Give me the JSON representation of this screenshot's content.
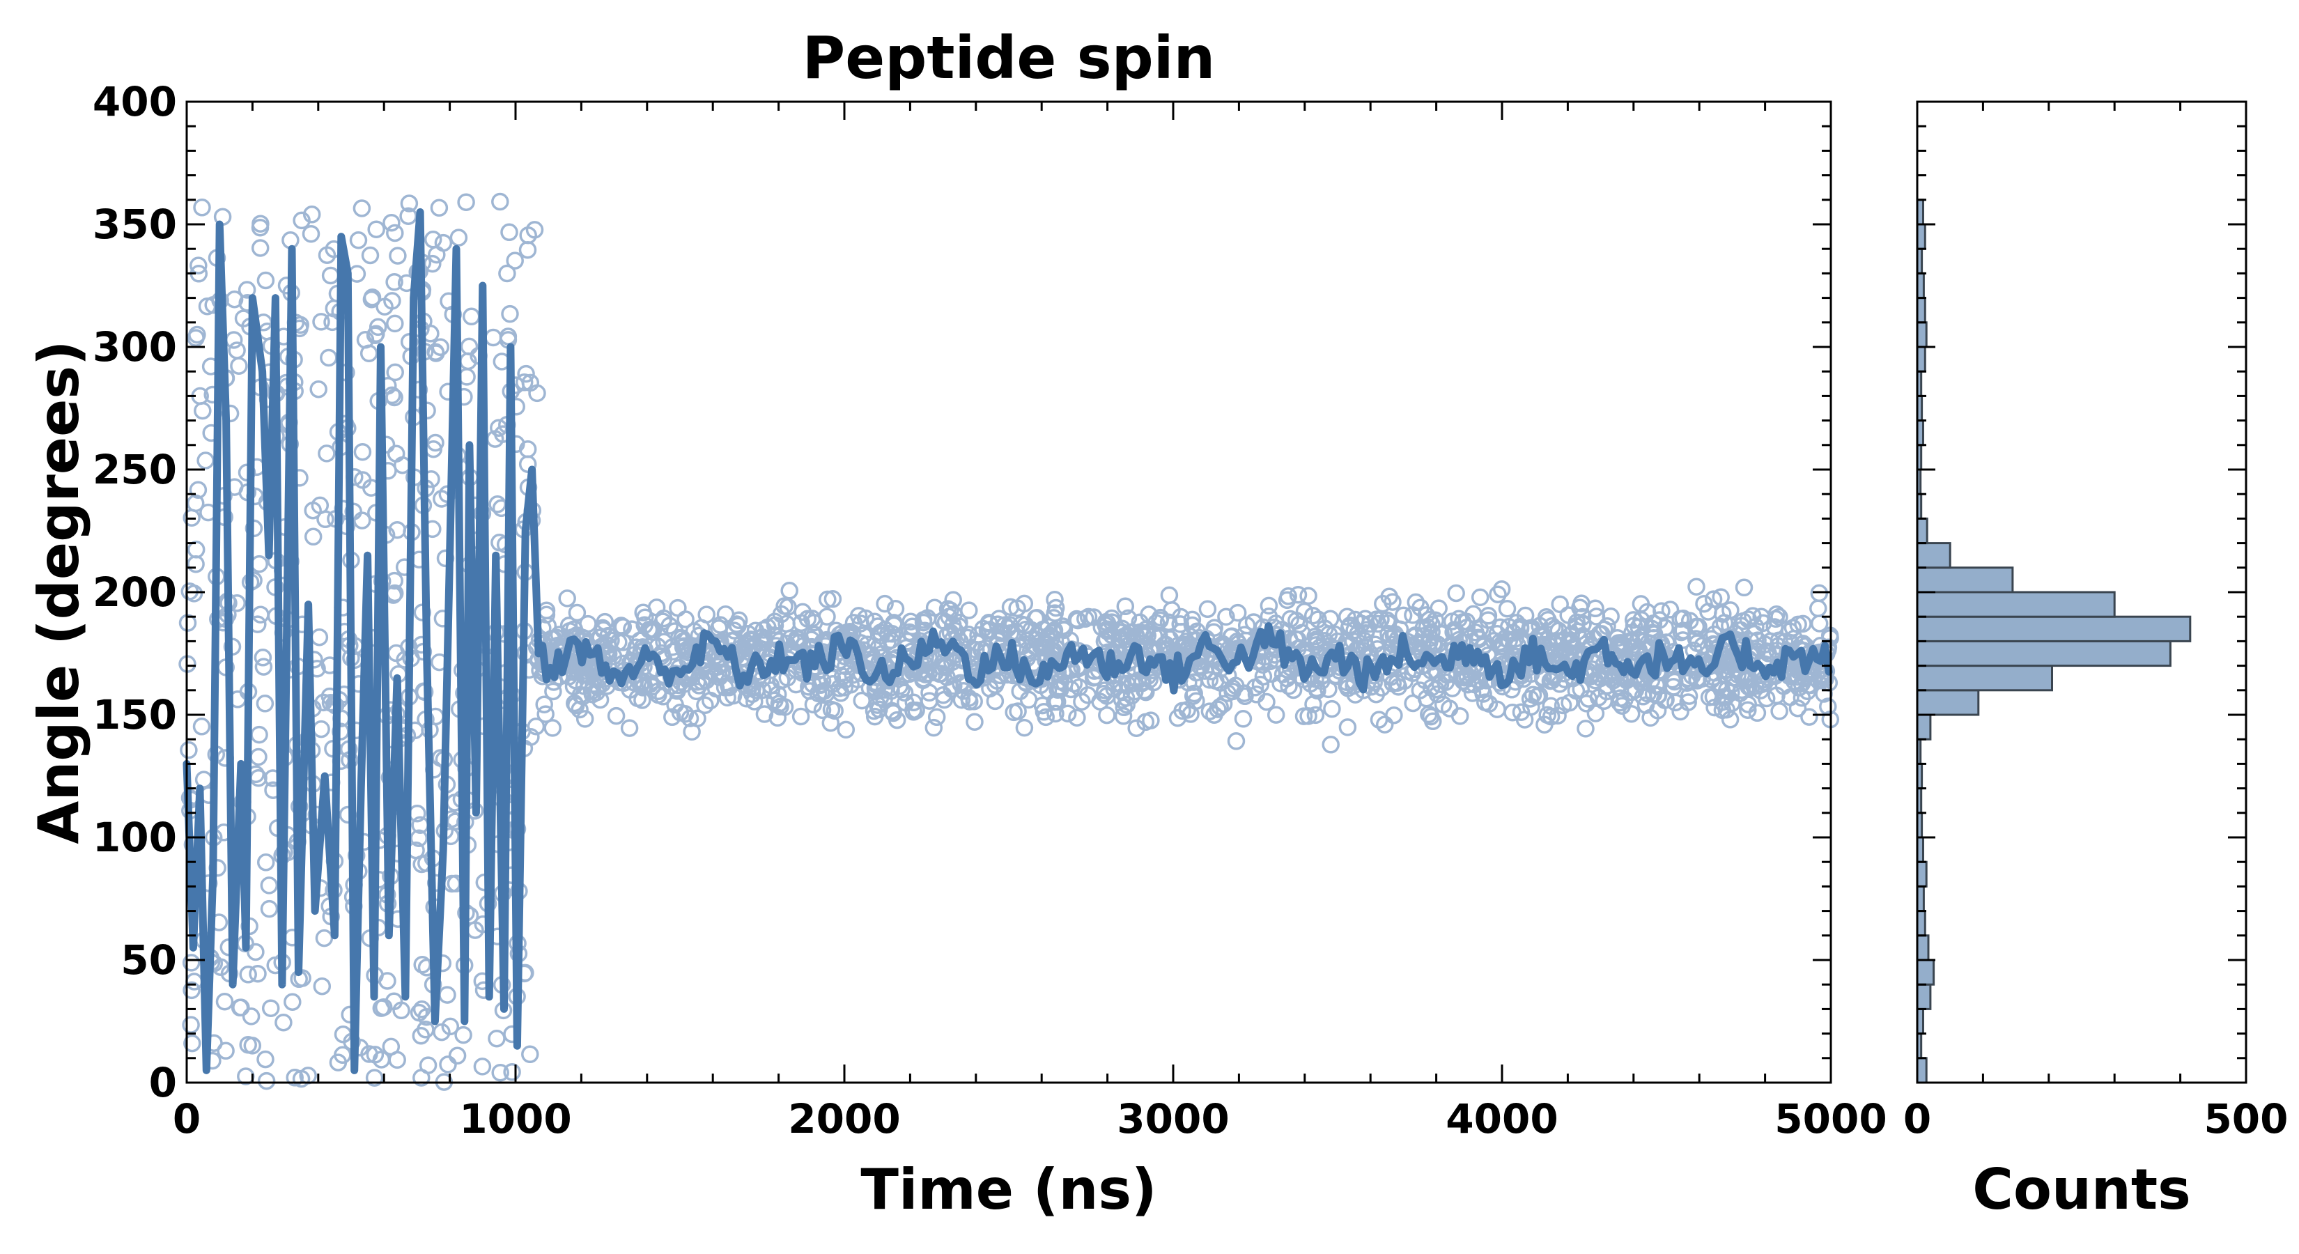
{
  "chart_data": [
    {
      "type": "scatter",
      "title": "Peptide spin",
      "xlabel": "Time (ns)",
      "ylabel": "Angle (degrees)",
      "xlim": [
        0,
        5000
      ],
      "ylim": [
        0,
        400
      ],
      "x_ticks": [
        0,
        1000,
        2000,
        3000,
        4000,
        5000
      ],
      "y_ticks": [
        0,
        50,
        100,
        150,
        200,
        250,
        300,
        350,
        400
      ],
      "grid": false,
      "legend": "none",
      "colors": {
        "points": "#9fb6d3",
        "trace": "#4677ac"
      },
      "series": [
        {
          "kind": "points",
          "description_of_regime": "raw samples",
          "phases": [
            {
              "x_range": [
                0,
                1070
              ],
              "y_range": [
                0,
                360
              ],
              "behaviour": "uniform"
            },
            {
              "x_range": [
                1070,
                5000
              ],
              "y_center": 173,
              "y_spread": 11
            }
          ]
        },
        {
          "kind": "smoothed_line",
          "points": [
            [
              0,
              130
            ],
            [
              20,
              55
            ],
            [
              40,
              120
            ],
            [
              60,
              5
            ],
            [
              80,
              85
            ],
            [
              100,
              350
            ],
            [
              120,
              270
            ],
            [
              140,
              40
            ],
            [
              165,
              130
            ],
            [
              180,
              55
            ],
            [
              200,
              320
            ],
            [
              230,
              290
            ],
            [
              250,
              215
            ],
            [
              270,
              320
            ],
            [
              290,
              40
            ],
            [
              320,
              340
            ],
            [
              340,
              45
            ],
            [
              370,
              195
            ],
            [
              390,
              70
            ],
            [
              420,
              125
            ],
            [
              450,
              60
            ],
            [
              470,
              345
            ],
            [
              490,
              330
            ],
            [
              510,
              5
            ],
            [
              530,
              120
            ],
            [
              550,
              215
            ],
            [
              570,
              35
            ],
            [
              590,
              300
            ],
            [
              615,
              60
            ],
            [
              640,
              165
            ],
            [
              665,
              35
            ],
            [
              690,
              320
            ],
            [
              710,
              355
            ],
            [
              730,
              175
            ],
            [
              755,
              25
            ],
            [
              780,
              95
            ],
            [
              800,
              215
            ],
            [
              820,
              340
            ],
            [
              845,
              25
            ],
            [
              860,
              260
            ],
            [
              880,
              110
            ],
            [
              900,
              325
            ],
            [
              920,
              35
            ],
            [
              940,
              215
            ],
            [
              965,
              30
            ],
            [
              985,
              300
            ],
            [
              1005,
              15
            ],
            [
              1030,
              225
            ],
            [
              1050,
              250
            ],
            [
              1070,
              175
            ],
            [
              1100,
              170
            ],
            [
              1200,
              178
            ],
            [
              1300,
              165
            ],
            [
              1400,
              172
            ],
            [
              1500,
              168
            ],
            [
              1600,
              180
            ],
            [
              1700,
              165
            ],
            [
              1800,
              174
            ],
            [
              1900,
              170
            ],
            [
              2000,
              178
            ],
            [
              2100,
              166
            ],
            [
              2200,
              172
            ],
            [
              2300,
              181
            ],
            [
              2400,
              168
            ],
            [
              2500,
              174
            ],
            [
              2600,
              164
            ],
            [
              2700,
              177
            ],
            [
              2800,
              170
            ],
            [
              2900,
              175
            ],
            [
              3000,
              166
            ],
            [
              3100,
              178
            ],
            [
              3200,
              172
            ],
            [
              3300,
              181
            ],
            [
              3400,
              167
            ],
            [
              3500,
              174
            ],
            [
              3600,
              165
            ],
            [
              3700,
              176
            ],
            [
              3800,
              170
            ],
            [
              3900,
              178
            ],
            [
              4000,
              168
            ],
            [
              4100,
              175
            ],
            [
              4200,
              166
            ],
            [
              4300,
              178
            ],
            [
              4400,
              170
            ],
            [
              4500,
              174
            ],
            [
              4600,
              166
            ],
            [
              4700,
              178
            ],
            [
              4800,
              170
            ],
            [
              4900,
              174
            ],
            [
              5000,
              172
            ]
          ]
        }
      ]
    },
    {
      "type": "bar",
      "orientation": "horizontal",
      "xlabel": "Counts",
      "xlim": [
        0,
        500
      ],
      "x_ticks": [
        0,
        500
      ],
      "ylim": [
        0,
        400
      ],
      "bin_width": 10,
      "colors": {
        "fill": "#94aecb",
        "edge": "#3a4550"
      },
      "bins": [
        {
          "y": 0,
          "count": 14
        },
        {
          "y": 10,
          "count": 6
        },
        {
          "y": 20,
          "count": 9
        },
        {
          "y": 30,
          "count": 20
        },
        {
          "y": 40,
          "count": 25
        },
        {
          "y": 50,
          "count": 17
        },
        {
          "y": 60,
          "count": 12
        },
        {
          "y": 70,
          "count": 10
        },
        {
          "y": 80,
          "count": 14
        },
        {
          "y": 90,
          "count": 9
        },
        {
          "y": 100,
          "count": 7
        },
        {
          "y": 110,
          "count": 6
        },
        {
          "y": 120,
          "count": 7
        },
        {
          "y": 130,
          "count": 5
        },
        {
          "y": 140,
          "count": 20
        },
        {
          "y": 150,
          "count": 93
        },
        {
          "y": 160,
          "count": 205
        },
        {
          "y": 170,
          "count": 385
        },
        {
          "y": 180,
          "count": 415
        },
        {
          "y": 190,
          "count": 300
        },
        {
          "y": 200,
          "count": 145
        },
        {
          "y": 210,
          "count": 50
        },
        {
          "y": 220,
          "count": 15
        },
        {
          "y": 230,
          "count": 6
        },
        {
          "y": 240,
          "count": 5
        },
        {
          "y": 250,
          "count": 6
        },
        {
          "y": 260,
          "count": 9
        },
        {
          "y": 270,
          "count": 7
        },
        {
          "y": 280,
          "count": 6
        },
        {
          "y": 290,
          "count": 12
        },
        {
          "y": 300,
          "count": 14
        },
        {
          "y": 310,
          "count": 12
        },
        {
          "y": 320,
          "count": 10
        },
        {
          "y": 330,
          "count": 7
        },
        {
          "y": 340,
          "count": 12
        },
        {
          "y": 350,
          "count": 9
        }
      ]
    }
  ]
}
